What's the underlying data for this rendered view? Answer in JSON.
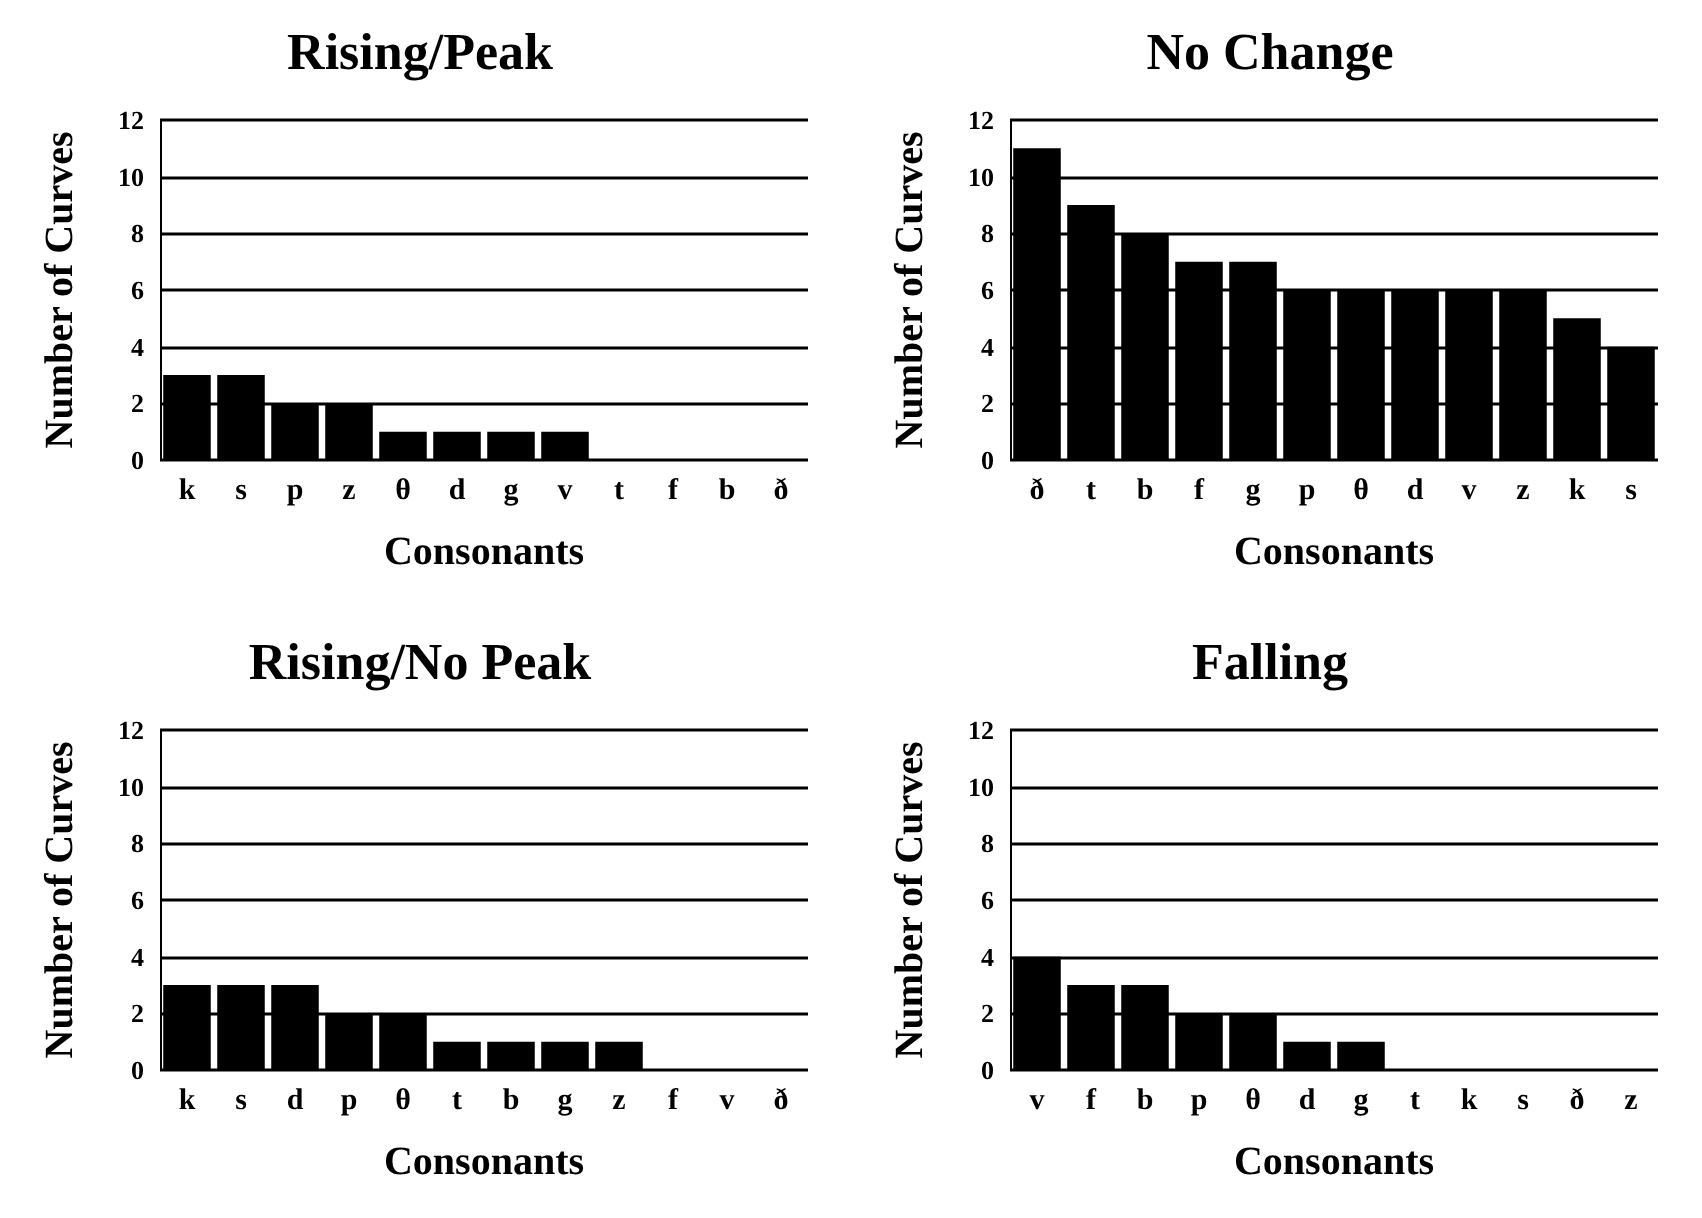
{
  "chart_data": [
    {
      "type": "bar",
      "title": "Rising/Peak",
      "xlabel": "Consonants",
      "ylabel": "Number of Curves",
      "categories": [
        "k",
        "s",
        "p",
        "z",
        "θ",
        "d",
        "g",
        "v",
        "t",
        "f",
        "b",
        "ð"
      ],
      "values": [
        3,
        3,
        2,
        2,
        1,
        1,
        1,
        1,
        0,
        0,
        0,
        0
      ],
      "color": "#000000",
      "ylim": [
        0,
        12
      ],
      "yticks": [
        0,
        2,
        4,
        6,
        8,
        10,
        12
      ],
      "grid": "y"
    },
    {
      "type": "bar",
      "title": "No Change",
      "xlabel": "Consonants",
      "ylabel": "Number of Curves",
      "categories": [
        "ð",
        "t",
        "b",
        "f",
        "g",
        "p",
        "θ",
        "d",
        "v",
        "z",
        "k",
        "s"
      ],
      "values": [
        11,
        9,
        8,
        7,
        7,
        6,
        6,
        6,
        6,
        6,
        5,
        4
      ],
      "color": "#000000",
      "ylim": [
        0,
        12
      ],
      "yticks": [
        0,
        2,
        4,
        6,
        8,
        10,
        12
      ],
      "grid": "y"
    },
    {
      "type": "bar",
      "title": "Rising/No Peak",
      "xlabel": "Consonants",
      "ylabel": "Number of Curves",
      "categories": [
        "k",
        "s",
        "d",
        "p",
        "θ",
        "t",
        "b",
        "g",
        "z",
        "f",
        "v",
        "ð"
      ],
      "values": [
        3,
        3,
        3,
        2,
        2,
        1,
        1,
        1,
        1,
        0,
        0,
        0
      ],
      "color": "#000000",
      "ylim": [
        0,
        12
      ],
      "yticks": [
        0,
        2,
        4,
        6,
        8,
        10,
        12
      ],
      "grid": "y"
    },
    {
      "type": "bar",
      "title": "Falling",
      "xlabel": "Consonants",
      "ylabel": "Number of Curves",
      "categories": [
        "v",
        "f",
        "b",
        "p",
        "θ",
        "d",
        "g",
        "t",
        "k",
        "s",
        "ð",
        "z"
      ],
      "values": [
        4,
        3,
        3,
        2,
        2,
        1,
        1,
        0,
        0,
        0,
        0,
        0
      ],
      "color": "#000000",
      "ylim": [
        0,
        12
      ],
      "yticks": [
        0,
        2,
        4,
        6,
        8,
        10,
        12
      ],
      "grid": "y"
    }
  ]
}
